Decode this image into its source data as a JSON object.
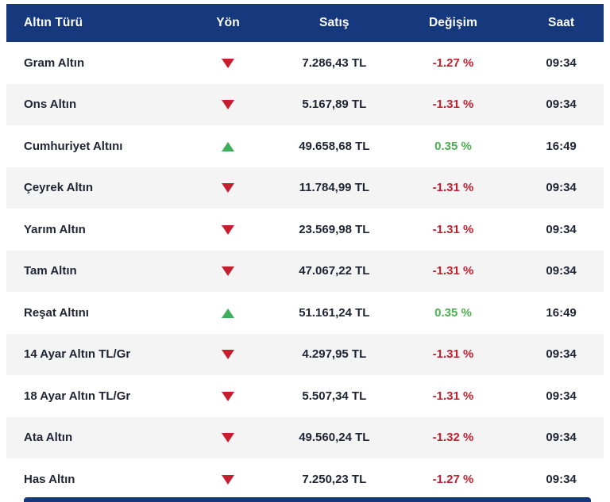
{
  "widget": {
    "name": "gold-prices-table",
    "columns": {
      "type": "Altın Türü",
      "direction": "Yön",
      "price": "Satış",
      "change": "Değişim",
      "time": "Saat"
    },
    "rows": [
      {
        "name": "Gram Altın",
        "direction": "down",
        "price": "7.286,43 TL",
        "change": "-1.27 %",
        "time": "09:34"
      },
      {
        "name": "Ons Altın",
        "direction": "down",
        "price": "5.167,89 TL",
        "change": "-1.31 %",
        "time": "09:34"
      },
      {
        "name": "Cumhuriyet Altını",
        "direction": "up",
        "price": "49.658,68 TL",
        "change": "0.35 %",
        "time": "16:49"
      },
      {
        "name": "Çeyrek Altın",
        "direction": "down",
        "price": "11.784,99 TL",
        "change": "-1.31 %",
        "time": "09:34"
      },
      {
        "name": "Yarım Altın",
        "direction": "down",
        "price": "23.569,98 TL",
        "change": "-1.31 %",
        "time": "09:34"
      },
      {
        "name": "Tam Altın",
        "direction": "down",
        "price": "47.067,22 TL",
        "change": "-1.31 %",
        "time": "09:34"
      },
      {
        "name": "Reşat Altını",
        "direction": "up",
        "price": "51.161,24 TL",
        "change": "0.35 %",
        "time": "16:49"
      },
      {
        "name": "14 Ayar Altın TL/Gr",
        "direction": "down",
        "price": "4.297,95 TL",
        "change": "-1.31 %",
        "time": "09:34"
      },
      {
        "name": "18 Ayar Altın TL/Gr",
        "direction": "down",
        "price": "5.507,34 TL",
        "change": "-1.31 %",
        "time": "09:34"
      },
      {
        "name": "Ata Altın",
        "direction": "down",
        "price": "49.560,24 TL",
        "change": "-1.32 %",
        "time": "09:34"
      },
      {
        "name": "Has Altın",
        "direction": "down",
        "price": "7.250,23 TL",
        "change": "-1.27 %",
        "time": "09:34"
      }
    ],
    "colors": {
      "header_bg": "#16387c",
      "row_alt_bg": "#f4f4f4",
      "down_red": "#c41e2f",
      "up_triangle_green": "#3fae5a",
      "up_text_green": "#4caf50",
      "text_dark": "#1e2433"
    }
  }
}
